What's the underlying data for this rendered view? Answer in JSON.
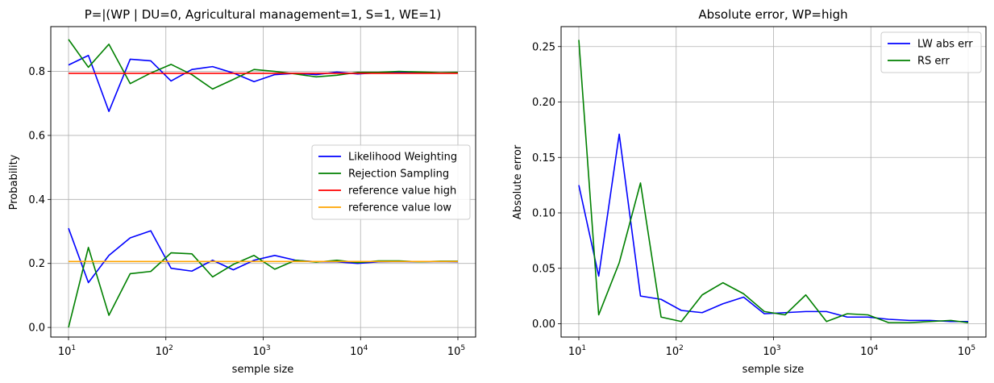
{
  "chart_data": [
    {
      "type": "line",
      "title": "P=|(WP | DU=0, Agricultural management=1, S=1, WE=1)",
      "xlabel": "semple size",
      "ylabel": "Probability",
      "xscale": "log",
      "xlim": [
        10,
        100000
      ],
      "ylim": [
        -0.03,
        0.94
      ],
      "grid": true,
      "legend_position": "center-right",
      "x_ticks": [
        {
          "value": 10,
          "base": "10",
          "exp": "1"
        },
        {
          "value": 100,
          "base": "10",
          "exp": "2"
        },
        {
          "value": 1000,
          "base": "10",
          "exp": "3"
        },
        {
          "value": 10000,
          "base": "10",
          "exp": "4"
        },
        {
          "value": 100000,
          "base": "10",
          "exp": "5"
        }
      ],
      "y_ticks": [
        {
          "value": 0.0,
          "label": "0.0"
        },
        {
          "value": 0.2,
          "label": "0.2"
        },
        {
          "value": 0.4,
          "label": "0.4"
        },
        {
          "value": 0.6,
          "label": "0.6"
        },
        {
          "value": 0.8,
          "label": "0.8"
        }
      ],
      "x": [
        10,
        16,
        26,
        43,
        70,
        113,
        185,
        302,
        493,
        805,
        1314,
        2145,
        3502,
        5716,
        9330,
        15230,
        24860,
        40578,
        66237,
        100000
      ],
      "series": [
        {
          "name": "Likelihood Weighting",
          "color": "#0000ff",
          "values": [
            0.82,
            0.85,
            0.675,
            0.838,
            0.833,
            0.77,
            0.806,
            0.815,
            0.795,
            0.768,
            0.79,
            0.794,
            0.79,
            0.798,
            0.792,
            0.796,
            0.797,
            0.796,
            0.795,
            0.795
          ]
        },
        {
          "name": "",
          "color": "#0000ff",
          "values": [
            0.31,
            0.14,
            0.225,
            0.28,
            0.302,
            0.185,
            0.176,
            0.21,
            0.18,
            0.21,
            0.225,
            0.21,
            0.205,
            0.205,
            0.2,
            0.205,
            0.206,
            0.205,
            0.206,
            0.205
          ]
        },
        {
          "name": "Rejection Sampling",
          "color": "#008000",
          "values": [
            0.9,
            0.813,
            0.885,
            0.762,
            0.795,
            0.822,
            0.79,
            0.745,
            0.775,
            0.806,
            0.8,
            0.792,
            0.783,
            0.788,
            0.797,
            0.797,
            0.8,
            0.798,
            0.796,
            0.797
          ]
        },
        {
          "name": "",
          "color": "#008000",
          "values": [
            0.0,
            0.25,
            0.038,
            0.168,
            0.175,
            0.233,
            0.23,
            0.158,
            0.197,
            0.225,
            0.182,
            0.21,
            0.204,
            0.21,
            0.203,
            0.208,
            0.208,
            0.205,
            0.207,
            0.207
          ]
        },
        {
          "name": "reference value high",
          "color": "#ff0000",
          "values": [
            0.794,
            0.794,
            0.794,
            0.794,
            0.794,
            0.794,
            0.794,
            0.794,
            0.794,
            0.794,
            0.794,
            0.794,
            0.794,
            0.794,
            0.794,
            0.794,
            0.794,
            0.794,
            0.794,
            0.794
          ]
        },
        {
          "name": "reference value low",
          "color": "#ffa500",
          "values": [
            0.206,
            0.206,
            0.206,
            0.206,
            0.206,
            0.206,
            0.206,
            0.206,
            0.206,
            0.206,
            0.206,
            0.206,
            0.206,
            0.206,
            0.206,
            0.206,
            0.206,
            0.206,
            0.206,
            0.206
          ]
        }
      ]
    },
    {
      "type": "line",
      "title": "Absolute error, WP=high",
      "xlabel": "semple size",
      "ylabel": "Absolute error",
      "xscale": "log",
      "xlim": [
        10,
        100000
      ],
      "ylim": [
        -0.012,
        0.268
      ],
      "grid": true,
      "legend_position": "top-right",
      "x_ticks": [
        {
          "value": 10,
          "base": "10",
          "exp": "1"
        },
        {
          "value": 100,
          "base": "10",
          "exp": "2"
        },
        {
          "value": 1000,
          "base": "10",
          "exp": "3"
        },
        {
          "value": 10000,
          "base": "10",
          "exp": "4"
        },
        {
          "value": 100000,
          "base": "10",
          "exp": "5"
        }
      ],
      "y_ticks": [
        {
          "value": 0.0,
          "label": "0.00"
        },
        {
          "value": 0.05,
          "label": "0.05"
        },
        {
          "value": 0.1,
          "label": "0.10"
        },
        {
          "value": 0.15,
          "label": "0.15"
        },
        {
          "value": 0.2,
          "label": "0.20"
        },
        {
          "value": 0.25,
          "label": "0.25"
        }
      ],
      "x": [
        10,
        16,
        26,
        43,
        70,
        113,
        185,
        302,
        493,
        805,
        1314,
        2145,
        3502,
        5716,
        9330,
        15230,
        24860,
        40578,
        66237,
        100000
      ],
      "series": [
        {
          "name": "LW abs err",
          "color": "#0000ff",
          "values": [
            0.125,
            0.043,
            0.171,
            0.025,
            0.022,
            0.012,
            0.01,
            0.018,
            0.024,
            0.009,
            0.01,
            0.011,
            0.011,
            0.006,
            0.006,
            0.004,
            0.003,
            0.003,
            0.002,
            0.002
          ]
        },
        {
          "name": "RS err",
          "color": "#008000",
          "values": [
            0.256,
            0.008,
            0.055,
            0.127,
            0.006,
            0.002,
            0.026,
            0.037,
            0.027,
            0.011,
            0.008,
            0.026,
            0.002,
            0.009,
            0.008,
            0.001,
            0.001,
            0.002,
            0.003,
            0.001
          ]
        }
      ]
    }
  ]
}
